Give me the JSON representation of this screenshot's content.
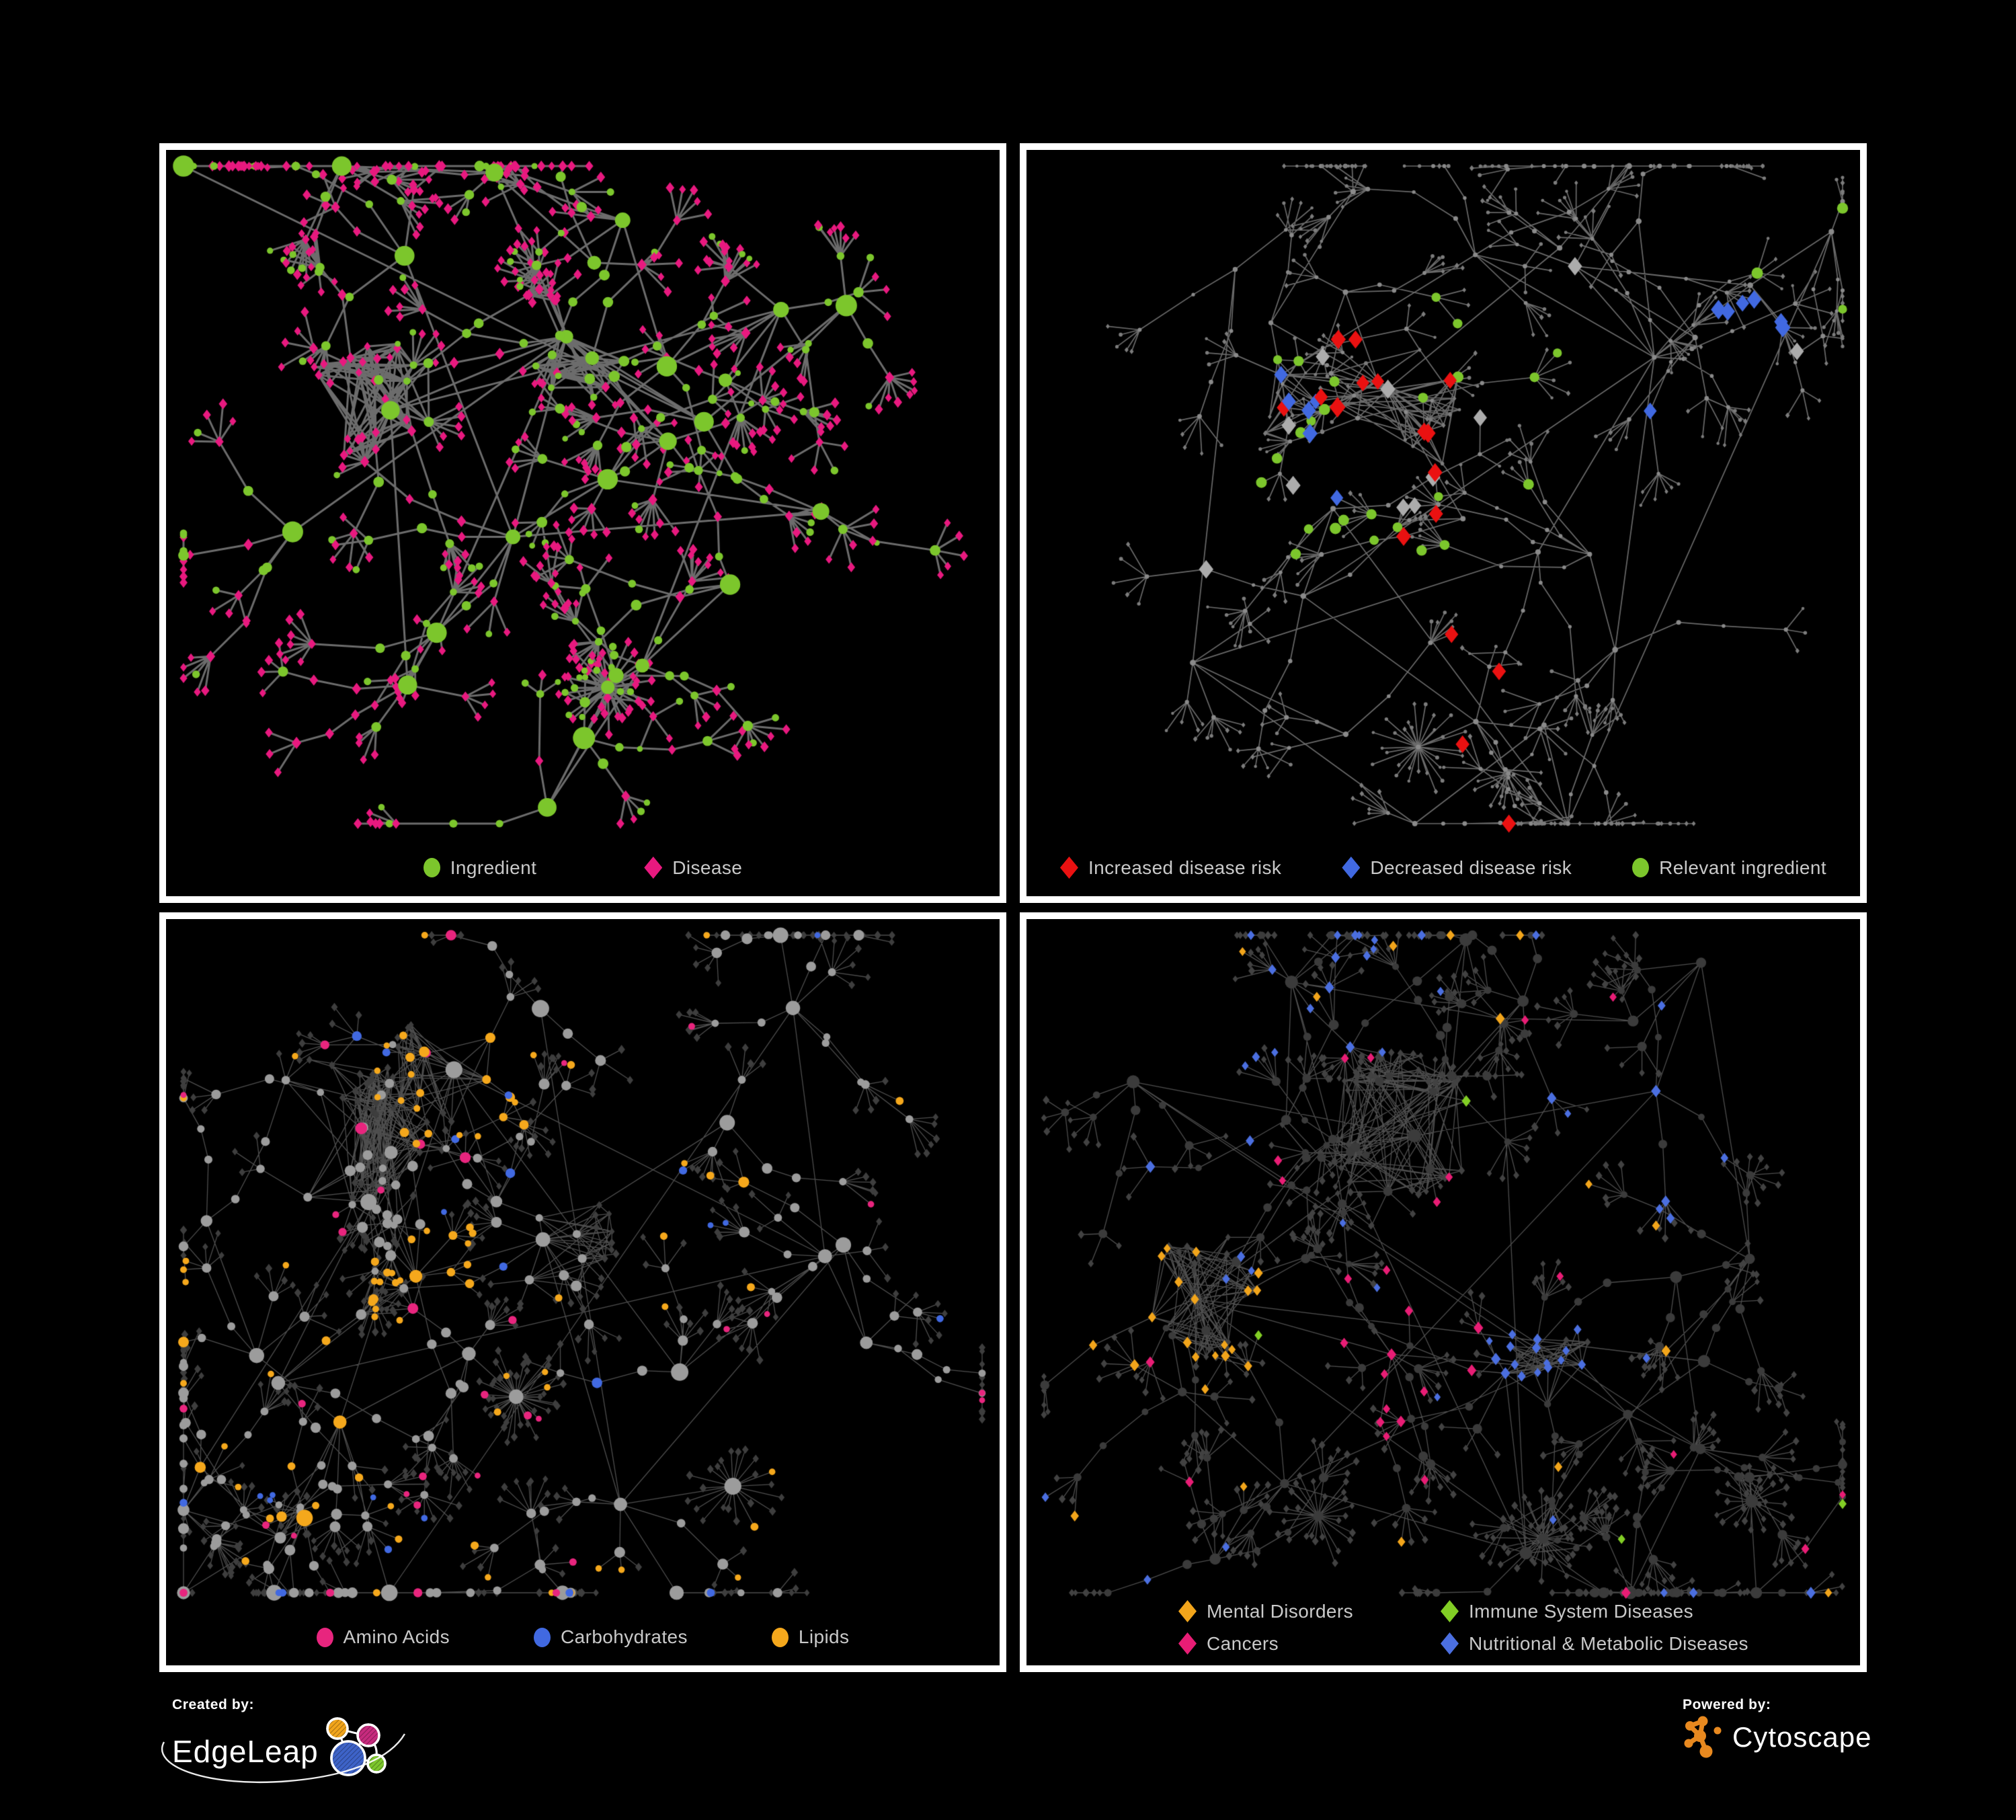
{
  "figure": {
    "background": "#000000",
    "panel_border_color": "#FFFFFF",
    "legend_text_color": "#C9C9C9"
  },
  "panels": [
    {
      "name": "ingredient-disease-network",
      "legend": {
        "layout": "row",
        "items": [
          {
            "label": "Ingredient",
            "shape": "circle",
            "color": "#7CC62C"
          },
          {
            "label": "Disease",
            "shape": "diamond",
            "color": "#E8197F"
          }
        ]
      },
      "network": {
        "seed": 7,
        "mode": "p1",
        "hub_count": 26,
        "cross_links": 5,
        "branch": [
          2,
          5
        ],
        "chain": [
          1,
          3
        ],
        "leaves": [
          3,
          8
        ],
        "anchors": [
          [
            0.5,
            0.27,
            1.6
          ],
          [
            0.25,
            0.34,
            1.7
          ],
          [
            0.42,
            0.52,
            1.2
          ],
          [
            0.6,
            0.38,
            1
          ],
          [
            0.3,
            0.13,
            1
          ],
          [
            0.75,
            0.22,
            1
          ],
          [
            0.57,
            0.7,
            1
          ],
          [
            0.3,
            0.7,
            1
          ],
          [
            0.8,
            0.5,
            1
          ],
          [
            0.15,
            0.5,
            1
          ],
          [
            0.66,
            0.58,
            1
          ],
          [
            0.45,
            0.86,
            1
          ]
        ],
        "stars": [
          [
            0.53,
            0.72,
            34
          ]
        ],
        "hairballs": [
          [
            0.5,
            0.27,
            0.06,
            70
          ],
          [
            0.25,
            0.34,
            0.085,
            90
          ]
        ],
        "zones": [
          [
            0.5,
            0.27,
            0.06,
            "green",
            0.92
          ]
        ],
        "global_highlights": [],
        "edge": {
          "color": "#6C6C6C",
          "width": 3
        },
        "palette": {
          "green": "#7CC62C",
          "pink": "#E8197F"
        }
      }
    },
    {
      "name": "disease-risk-network",
      "legend": {
        "layout": "row",
        "items": [
          {
            "label": "Increased disease risk",
            "shape": "diamond",
            "color": "#EA1111"
          },
          {
            "label": "Decreased disease risk",
            "shape": "diamond",
            "color": "#4169E1"
          },
          {
            "label": "Relevant ingredient",
            "shape": "circle",
            "color": "#7CC62C"
          }
        ]
      },
      "network": {
        "seed": 23,
        "mode": "p2",
        "hub_count": 28,
        "cross_links": 5,
        "branch": [
          2,
          5
        ],
        "chain": [
          1,
          3
        ],
        "leaves": [
          3,
          7
        ],
        "anchors": [
          [
            0.45,
            0.34,
            1.7
          ],
          [
            0.3,
            0.31,
            1.2
          ],
          [
            0.55,
            0.14,
            1
          ],
          [
            0.74,
            0.3,
            1
          ],
          [
            0.88,
            0.2,
            1
          ],
          [
            0.6,
            0.54,
            1
          ],
          [
            0.35,
            0.6,
            1
          ],
          [
            0.18,
            0.7,
            1
          ],
          [
            0.55,
            0.78,
            1
          ],
          [
            0.72,
            0.66,
            1
          ],
          [
            0.25,
            0.14,
            1
          ],
          [
            0.45,
            0.9,
            1
          ]
        ],
        "stars": [
          [
            0.47,
            0.8,
            28
          ]
        ],
        "hairballs": [
          [
            0.45,
            0.35,
            0.08,
            60
          ],
          [
            0.3,
            0.33,
            0.05,
            30
          ]
        ],
        "zones": [
          [
            0.3,
            0.34,
            0.055,
            "blue",
            0.5
          ],
          [
            0.47,
            0.37,
            0.17,
            "red",
            0.16
          ],
          [
            0.44,
            0.38,
            0.22,
            "green",
            0.15
          ],
          [
            0.48,
            0.4,
            0.2,
            "grayd",
            0.045
          ],
          [
            0.86,
            0.25,
            0.05,
            "blue",
            0.6
          ],
          [
            0.56,
            0.74,
            0.09,
            "red",
            0.1
          ]
        ],
        "global_highlights": [
          [
            "red",
            0.012
          ],
          [
            "green",
            0.015
          ],
          [
            "grayd",
            0.007
          ],
          [
            "blue",
            0.004
          ]
        ],
        "edge": {
          "color": "#6A6A6A",
          "width": 1.7
        },
        "palette": {
          "dim": "#8A8A8A",
          "dimleaf": "#7C7C7C",
          "red": "#EA1111",
          "blue": "#4169E1",
          "grayd": "#ACACAC",
          "green": "#7CC62C"
        }
      }
    },
    {
      "name": "ingredient-class-network",
      "legend": {
        "layout": "row",
        "items": [
          {
            "label": "Amino Acids",
            "shape": "circle",
            "color": "#E8257E"
          },
          {
            "label": "Carbohydrates",
            "shape": "circle",
            "color": "#4169E1"
          },
          {
            "label": "Lipids",
            "shape": "circle",
            "color": "#F5A81C"
          }
        ]
      },
      "network": {
        "seed": 41,
        "mode": "p3",
        "hub_count": 30,
        "cross_links": 7,
        "branch": [
          2,
          5
        ],
        "chain": [
          1,
          3
        ],
        "leaves": [
          3,
          8
        ],
        "anchors": [
          [
            0.22,
            0.28,
            2.2
          ],
          [
            0.34,
            0.2,
            1.6
          ],
          [
            0.3,
            0.46,
            1.3
          ],
          [
            0.47,
            0.42,
            1.4
          ],
          [
            0.68,
            0.28,
            1
          ],
          [
            0.62,
            0.62,
            1
          ],
          [
            0.2,
            0.66,
            1
          ],
          [
            0.8,
            0.45,
            1
          ],
          [
            0.55,
            0.8,
            1
          ],
          [
            0.76,
            0.14,
            1
          ],
          [
            0.15,
            0.85,
            1
          ],
          [
            0.45,
            0.12,
            1
          ]
        ],
        "stars": [
          [
            0.42,
            0.64,
            40
          ],
          [
            0.68,
            0.76,
            22
          ]
        ],
        "hairballs": [
          [
            0.22,
            0.28,
            0.1,
            150
          ],
          [
            0.47,
            0.42,
            0.07,
            50
          ],
          [
            0.34,
            0.2,
            0.07,
            60
          ]
        ],
        "zones": [
          [
            0.34,
            0.2,
            0.1,
            "orange",
            0.55
          ],
          [
            0.3,
            0.46,
            0.08,
            "orange",
            0.3
          ],
          [
            0.42,
            0.64,
            0.05,
            "orange",
            0.3
          ],
          [
            0.33,
            0.21,
            0.12,
            "blue",
            0.1
          ]
        ],
        "global_highlights": [
          [
            "orange",
            0.07
          ],
          [
            "pink",
            0.05
          ],
          [
            "blue",
            0.025
          ]
        ],
        "edge": {
          "color": "rgba(195,195,195,0.40)",
          "width": 1.3
        },
        "palette": {
          "gray": "#9C9C9C",
          "orange": "#F5A81C",
          "blue": "#4169E1",
          "pink": "#E8257E",
          "leaf": "#3E3E3E"
        }
      }
    },
    {
      "name": "disease-class-network",
      "legend": {
        "layout": "grid",
        "items": [
          {
            "label": "Mental Disorders",
            "shape": "diamond",
            "color": "#F2A51B"
          },
          {
            "label": "Immune System Diseases",
            "shape": "diamond",
            "color": "#82CE25"
          },
          {
            "label": "Cancers",
            "shape": "diamond",
            "color": "#E81D75"
          },
          {
            "label": "Nutritional & Metabolic Diseases",
            "shape": "diamond",
            "color": "#4B6FE0"
          }
        ]
      },
      "network": {
        "seed": 61,
        "mode": "p4",
        "hub_count": 30,
        "cross_links": 7,
        "branch": [
          2,
          5
        ],
        "chain": [
          1,
          3
        ],
        "leaves": [
          3,
          8
        ],
        "anchors": [
          [
            0.2,
            0.5,
            2.0
          ],
          [
            0.45,
            0.28,
            2.0
          ],
          [
            0.45,
            0.58,
            1.4
          ],
          [
            0.63,
            0.6,
            1.2
          ],
          [
            0.75,
            0.22,
            1.2
          ],
          [
            0.3,
            0.76,
            1
          ],
          [
            0.6,
            0.85,
            1
          ],
          [
            0.85,
            0.45,
            1
          ],
          [
            0.14,
            0.24,
            1
          ],
          [
            0.55,
            0.12,
            1
          ],
          [
            0.82,
            0.7,
            1
          ],
          [
            0.33,
            0.1,
            1
          ]
        ],
        "stars": [
          [
            0.35,
            0.8,
            26
          ],
          [
            0.62,
            0.83,
            30
          ],
          [
            0.87,
            0.78,
            20
          ]
        ],
        "hairballs": [
          [
            0.45,
            0.28,
            0.09,
            120
          ],
          [
            0.2,
            0.5,
            0.08,
            80
          ],
          [
            0.63,
            0.6,
            0.06,
            60
          ]
        ],
        "zones": [
          [
            0.2,
            0.5,
            0.12,
            "orange",
            0.6
          ],
          [
            0.45,
            0.58,
            0.11,
            "pink",
            0.42
          ],
          [
            0.63,
            0.6,
            0.08,
            "blue",
            0.5
          ],
          [
            0.75,
            0.25,
            0.14,
            "blue",
            0.28
          ],
          [
            0.45,
            0.28,
            0.12,
            "pink",
            0.1
          ],
          [
            0.3,
            0.1,
            0.2,
            "blue",
            0.12
          ]
        ],
        "global_highlights": [
          [
            "blue",
            0.04
          ],
          [
            "orange",
            0.035
          ],
          [
            "pink",
            0.028
          ],
          [
            "green",
            0.012
          ]
        ],
        "edge": {
          "color": "rgba(195,195,195,0.40)",
          "width": 1.3
        },
        "palette": {
          "dim": "#3B3B3B",
          "leaf": "#424242",
          "orange": "#F2A51B",
          "pink": "#E81D75",
          "blue": "#4B6FE0",
          "green": "#82CE25"
        }
      }
    }
  ],
  "footer": {
    "created_by": {
      "label": "Created by:",
      "brand": "EdgeLeap",
      "logo_colors": {
        "orange": "#F2A51B",
        "magenta": "#C72B7E",
        "blue": "#3E63C8",
        "green": "#7CC62C"
      }
    },
    "powered_by": {
      "label": "Powered by:",
      "brand": "Cytoscape",
      "logo_color": "#E8891F"
    }
  }
}
